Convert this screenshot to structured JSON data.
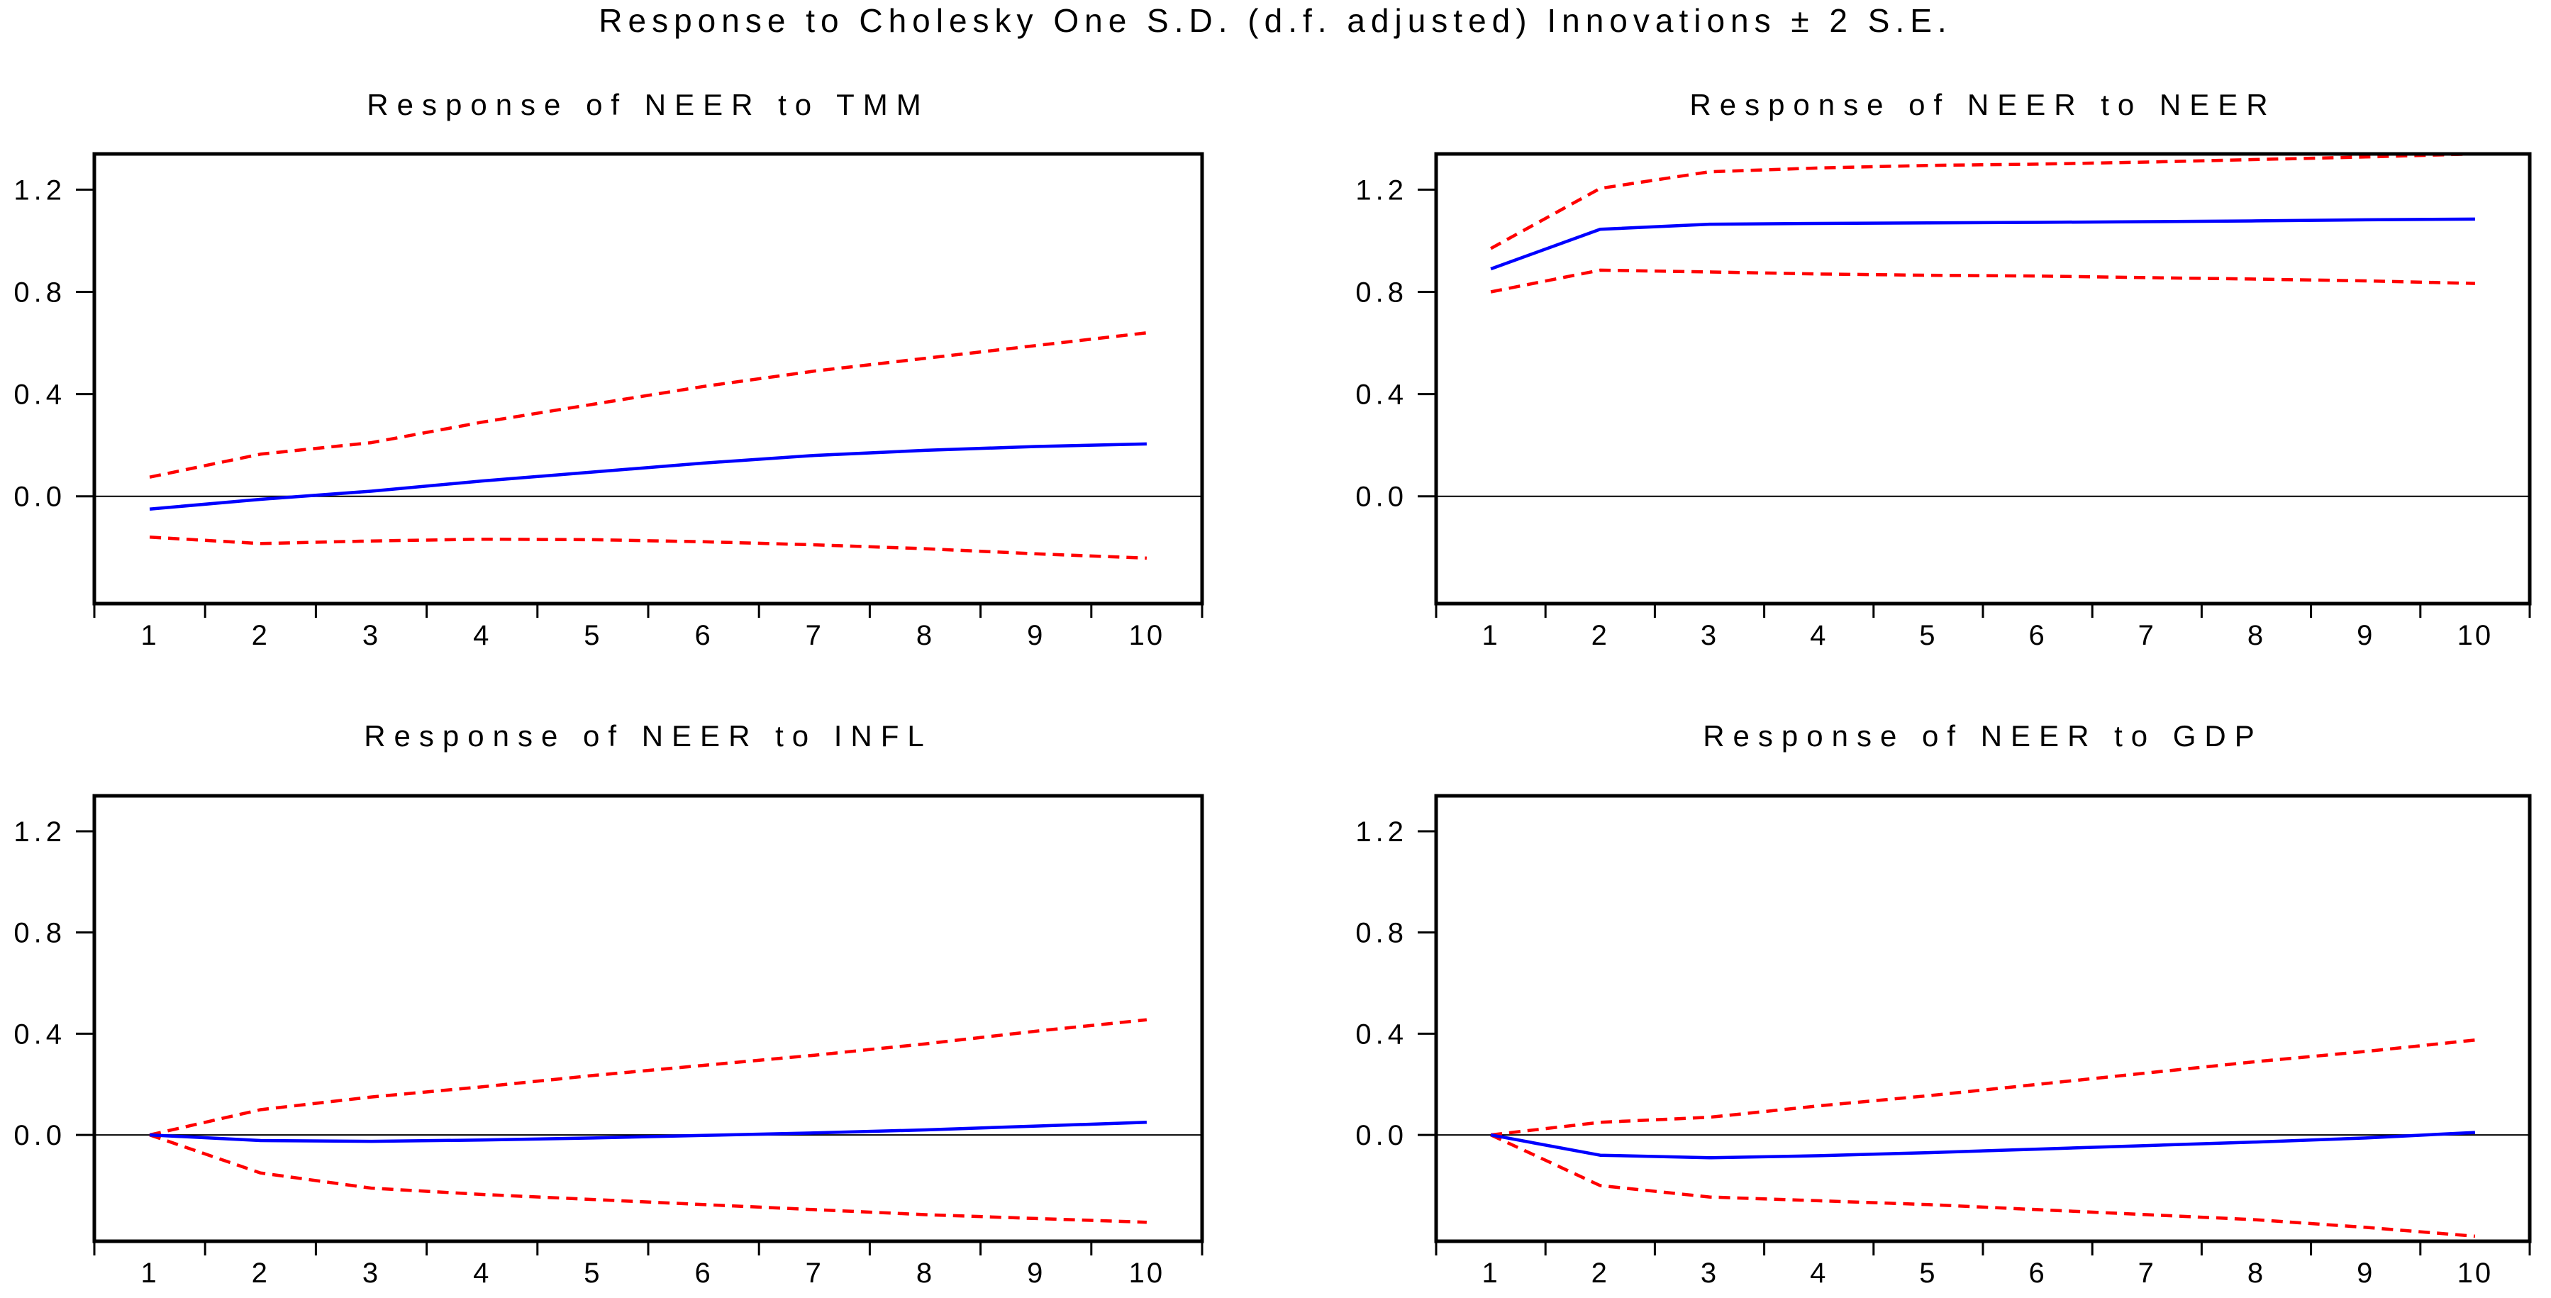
{
  "figure": {
    "title": "Response to Cholesky One S.D. (d.f. adjusted) Innovations ± 2 S.E.",
    "background_color": "#ffffff",
    "frame_color": "#000000",
    "response_line_color": "#0000ff",
    "band_line_color": "#ff0000"
  },
  "chart_data": [
    {
      "type": "line",
      "title": "Response of NEER to TMM",
      "x": [
        1,
        2,
        3,
        4,
        5,
        6,
        7,
        8,
        9,
        10
      ],
      "xtick_labels": [
        "1",
        "2",
        "3",
        "4",
        "5",
        "6",
        "7",
        "8",
        "9",
        "10"
      ],
      "yticks": [
        0.0,
        0.4,
        0.8,
        1.2
      ],
      "ytick_labels": [
        "0.0",
        "0.4",
        "0.8",
        "1.2"
      ],
      "ylim": [
        -0.42,
        1.34
      ],
      "xlim": [
        0.5,
        10.5
      ],
      "grid": false,
      "zero_line": true,
      "legend": "none",
      "series": [
        {
          "name": "response",
          "style": "solid",
          "color": "#0000ff",
          "values": [
            -0.05,
            -0.012,
            0.02,
            0.06,
            0.095,
            0.13,
            0.16,
            0.18,
            0.195,
            0.205
          ]
        },
        {
          "name": "upper-2se",
          "style": "dashed",
          "color": "#ff0000",
          "values": [
            0.075,
            0.165,
            0.21,
            0.29,
            0.36,
            0.43,
            0.49,
            0.54,
            0.59,
            0.64
          ]
        },
        {
          "name": "lower-2se",
          "style": "dashed",
          "color": "#ff0000",
          "values": [
            -0.16,
            -0.185,
            -0.175,
            -0.168,
            -0.17,
            -0.178,
            -0.19,
            -0.205,
            -0.225,
            -0.242
          ]
        }
      ]
    },
    {
      "type": "line",
      "title": "Response of NEER to NEER",
      "x": [
        1,
        2,
        3,
        4,
        5,
        6,
        7,
        8,
        9,
        10
      ],
      "xtick_labels": [
        "1",
        "2",
        "3",
        "4",
        "5",
        "6",
        "7",
        "8",
        "9",
        "10"
      ],
      "yticks": [
        0.0,
        0.4,
        0.8,
        1.2
      ],
      "ytick_labels": [
        "0.0",
        "0.4",
        "0.8",
        "1.2"
      ],
      "ylim": [
        -0.42,
        1.34
      ],
      "xlim": [
        0.5,
        10.5
      ],
      "grid": false,
      "zero_line": true,
      "legend": "none",
      "series": [
        {
          "name": "response",
          "style": "solid",
          "color": "#0000ff",
          "values": [
            0.89,
            1.045,
            1.065,
            1.068,
            1.07,
            1.072,
            1.075,
            1.078,
            1.082,
            1.085
          ]
        },
        {
          "name": "upper-2se",
          "style": "dashed",
          "color": "#ff0000",
          "values": [
            0.97,
            1.205,
            1.27,
            1.285,
            1.295,
            1.3,
            1.308,
            1.318,
            1.328,
            1.34
          ]
        },
        {
          "name": "lower-2se",
          "style": "dashed",
          "color": "#ff0000",
          "values": [
            0.8,
            0.885,
            0.878,
            0.87,
            0.865,
            0.862,
            0.856,
            0.85,
            0.843,
            0.833
          ]
        }
      ]
    },
    {
      "type": "line",
      "title": "Response of NEER to INFL",
      "x": [
        1,
        2,
        3,
        4,
        5,
        6,
        7,
        8,
        9,
        10
      ],
      "xtick_labels": [
        "1",
        "2",
        "3",
        "4",
        "5",
        "6",
        "7",
        "8",
        "9",
        "10"
      ],
      "yticks": [
        0.0,
        0.4,
        0.8,
        1.2
      ],
      "ytick_labels": [
        "0.0",
        "0.4",
        "0.8",
        "1.2"
      ],
      "ylim": [
        -0.42,
        1.34
      ],
      "xlim": [
        0.5,
        10.5
      ],
      "grid": false,
      "zero_line": true,
      "legend": "none",
      "series": [
        {
          "name": "response",
          "style": "solid",
          "color": "#0000ff",
          "values": [
            0.0,
            -0.022,
            -0.025,
            -0.02,
            -0.012,
            -0.002,
            0.008,
            0.02,
            0.035,
            0.05
          ]
        },
        {
          "name": "upper-2se",
          "style": "dashed",
          "color": "#ff0000",
          "values": [
            0.0,
            0.1,
            0.15,
            0.19,
            0.235,
            0.275,
            0.315,
            0.36,
            0.41,
            0.455
          ]
        },
        {
          "name": "lower-2se",
          "style": "dashed",
          "color": "#ff0000",
          "values": [
            0.0,
            -0.15,
            -0.21,
            -0.235,
            -0.255,
            -0.275,
            -0.295,
            -0.315,
            -0.33,
            -0.345
          ]
        }
      ]
    },
    {
      "type": "line",
      "title": "Response of NEER to GDP",
      "x": [
        1,
        2,
        3,
        4,
        5,
        6,
        7,
        8,
        9,
        10
      ],
      "xtick_labels": [
        "1",
        "2",
        "3",
        "4",
        "5",
        "6",
        "7",
        "8",
        "9",
        "10"
      ],
      "yticks": [
        0.0,
        0.4,
        0.8,
        1.2
      ],
      "ytick_labels": [
        "0.0",
        "0.4",
        "0.8",
        "1.2"
      ],
      "ylim": [
        -0.42,
        1.34
      ],
      "xlim": [
        0.5,
        10.5
      ],
      "grid": false,
      "zero_line": true,
      "legend": "none",
      "series": [
        {
          "name": "response",
          "style": "solid",
          "color": "#0000ff",
          "values": [
            0.0,
            -0.08,
            -0.09,
            -0.082,
            -0.07,
            -0.056,
            -0.042,
            -0.028,
            -0.012,
            0.01
          ]
        },
        {
          "name": "upper-2se",
          "style": "dashed",
          "color": "#ff0000",
          "values": [
            0.0,
            0.05,
            0.07,
            0.115,
            0.155,
            0.2,
            0.245,
            0.29,
            0.33,
            0.375
          ]
        },
        {
          "name": "lower-2se",
          "style": "dashed",
          "color": "#ff0000",
          "values": [
            0.0,
            -0.2,
            -0.245,
            -0.26,
            -0.275,
            -0.295,
            -0.315,
            -0.335,
            -0.365,
            -0.4
          ]
        }
      ]
    }
  ]
}
